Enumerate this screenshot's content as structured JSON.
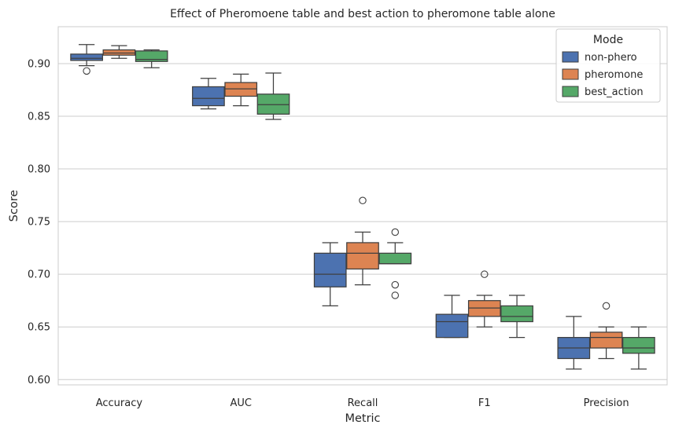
{
  "chart_data": {
    "type": "box",
    "title": "Effect of Pheromoene table and best action to pheromone table alone",
    "xlabel": "Metric",
    "ylabel": "Score",
    "categories": [
      "Accuracy",
      "AUC",
      "Recall",
      "F1",
      "Precision"
    ],
    "ylim": [
      0.595,
      0.935
    ],
    "yticks": [
      0.6,
      0.65,
      0.7,
      0.75,
      0.8,
      0.85,
      0.9
    ],
    "ytick_labels": [
      "0.60",
      "0.65",
      "0.70",
      "0.75",
      "0.80",
      "0.85",
      "0.90"
    ],
    "grid": true,
    "legend": {
      "title": "Mode",
      "placement": "top-right"
    },
    "series": [
      {
        "name": "non-phero",
        "color": "#4c72b0",
        "boxes": [
          {
            "whislo": 0.898,
            "q1": 0.903,
            "med": 0.905,
            "q3": 0.909,
            "whishi": 0.918,
            "fliers": [
              0.893
            ]
          },
          {
            "whislo": 0.857,
            "q1": 0.86,
            "med": 0.867,
            "q3": 0.878,
            "whishi": 0.886,
            "fliers": []
          },
          {
            "whislo": 0.67,
            "q1": 0.688,
            "med": 0.7,
            "q3": 0.72,
            "whishi": 0.73,
            "fliers": []
          },
          {
            "whislo": 0.64,
            "q1": 0.64,
            "med": 0.655,
            "q3": 0.662,
            "whishi": 0.68,
            "fliers": []
          },
          {
            "whislo": 0.61,
            "q1": 0.62,
            "med": 0.63,
            "q3": 0.64,
            "whishi": 0.66,
            "fliers": []
          }
        ]
      },
      {
        "name": "pheromone",
        "color": "#dd8452",
        "boxes": [
          {
            "whislo": 0.905,
            "q1": 0.908,
            "med": 0.91,
            "q3": 0.913,
            "whishi": 0.917,
            "fliers": []
          },
          {
            "whislo": 0.86,
            "q1": 0.869,
            "med": 0.876,
            "q3": 0.882,
            "whishi": 0.89,
            "fliers": []
          },
          {
            "whislo": 0.69,
            "q1": 0.705,
            "med": 0.72,
            "q3": 0.73,
            "whishi": 0.74,
            "fliers": [
              0.77
            ]
          },
          {
            "whislo": 0.65,
            "q1": 0.66,
            "med": 0.668,
            "q3": 0.675,
            "whishi": 0.68,
            "fliers": [
              0.7
            ]
          },
          {
            "whislo": 0.62,
            "q1": 0.63,
            "med": 0.64,
            "q3": 0.645,
            "whishi": 0.65,
            "fliers": [
              0.67
            ]
          }
        ]
      },
      {
        "name": "best_action",
        "color": "#55a868",
        "boxes": [
          {
            "whislo": 0.896,
            "q1": 0.902,
            "med": 0.904,
            "q3": 0.912,
            "whishi": 0.913,
            "fliers": []
          },
          {
            "whislo": 0.847,
            "q1": 0.852,
            "med": 0.861,
            "q3": 0.871,
            "whishi": 0.891,
            "fliers": []
          },
          {
            "whislo": 0.71,
            "q1": 0.71,
            "med": 0.71,
            "q3": 0.72,
            "whishi": 0.73,
            "fliers": [
              0.74,
              0.69,
              0.68
            ]
          },
          {
            "whislo": 0.64,
            "q1": 0.655,
            "med": 0.66,
            "q3": 0.67,
            "whishi": 0.68,
            "fliers": []
          },
          {
            "whislo": 0.61,
            "q1": 0.625,
            "med": 0.63,
            "q3": 0.64,
            "whishi": 0.65,
            "fliers": []
          }
        ]
      }
    ]
  }
}
